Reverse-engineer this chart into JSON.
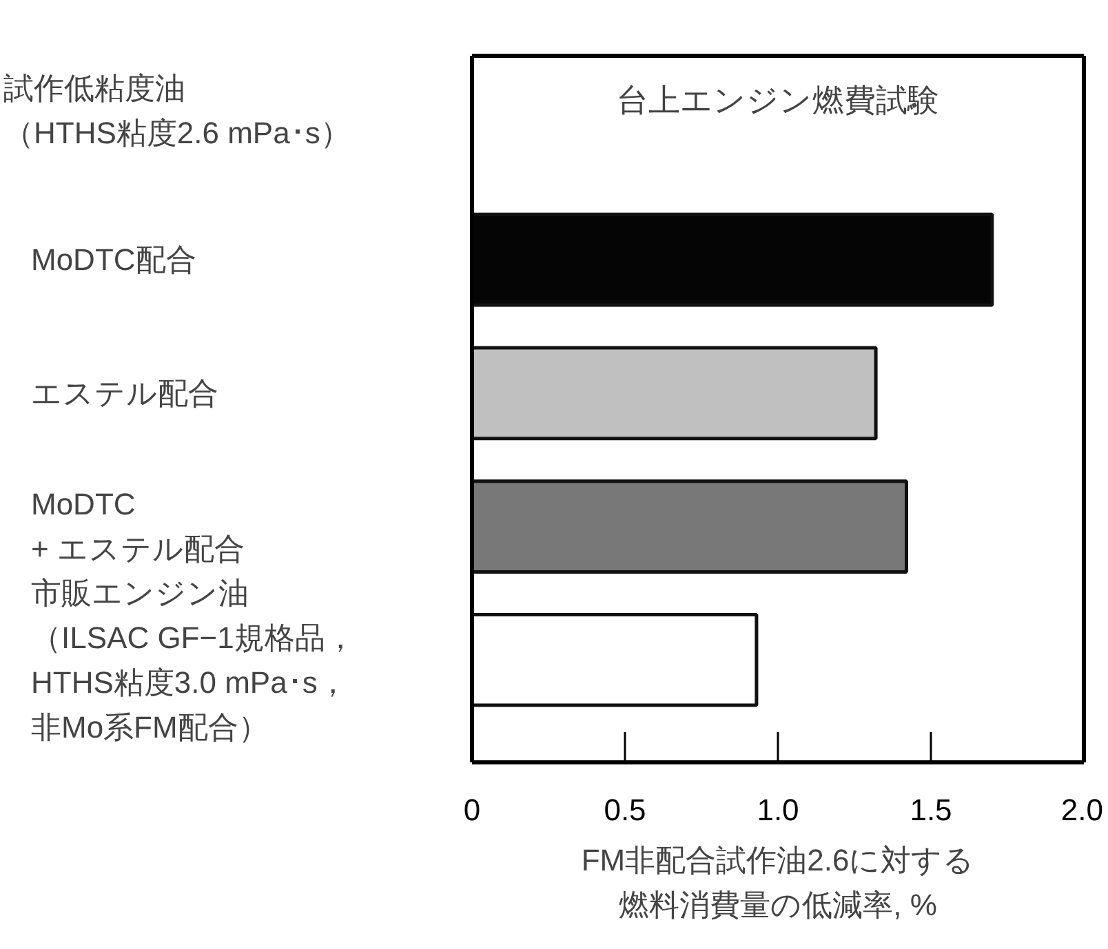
{
  "chart_data": {
    "type": "bar",
    "orientation": "horizontal",
    "title": "台上エンジン燃費試験",
    "xlabel": "FM非配合試作油2.6に対する燃料消費量の低減率, %",
    "categories": [
      "MoDTC配合",
      "エステル配合",
      "MoDTC\n+ エステル配合",
      "市販エンジン油（ILSAC GF−1規格品，HTHS粘度3.0 mPa･s，非Mo系FM配合）"
    ],
    "values": [
      1.7,
      1.32,
      1.42,
      0.93
    ],
    "colors": [
      "#050505",
      "#c0c0c0",
      "#787878",
      "#ffffff"
    ],
    "xlim": [
      0,
      2.0
    ],
    "xticks": [
      0,
      0.5,
      {
        "value": 1.0,
        "label": "1.0"
      },
      1.5,
      {
        "value": 2.0,
        "label": "2.0"
      }
    ],
    "annotations": [
      "試作低粘度油（HTHS粘度2.6 mPa･s）"
    ],
    "grid": false
  }
}
